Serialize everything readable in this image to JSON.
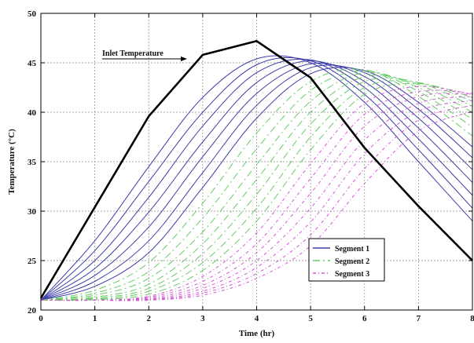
{
  "chart_data": {
    "type": "line",
    "title": "",
    "xlabel": "Time (hr)",
    "ylabel": "Temperature (°C)",
    "xlim": [
      0,
      8
    ],
    "ylim": [
      20,
      50
    ],
    "xticks": [
      "0",
      "1",
      "2",
      "3",
      "4",
      "5",
      "6",
      "7",
      "8"
    ],
    "yticks": [
      "20",
      "25",
      "30",
      "35",
      "40",
      "45",
      "50"
    ],
    "grid": true,
    "legend_position": "lower-right",
    "annotation": "Inlet Temperature",
    "inlet": {
      "x": [
        0,
        1,
        2,
        3,
        4,
        5,
        6,
        7,
        8
      ],
      "y": [
        21.2,
        30.4,
        39.6,
        45.8,
        47.2,
        43.5,
        36.4,
        30.5,
        25.0
      ]
    },
    "segments": [
      {
        "name": "Segment 1",
        "color": "#3d3daa",
        "dash": "",
        "curves": [
          {
            "x": [
              0,
              1,
              2,
              3,
              4,
              5,
              6,
              7,
              8
            ],
            "y": [
              21.0,
              27.0,
              34.5,
              41.5,
              45.4,
              45.0,
              41.0,
              35.0,
              29.0
            ]
          },
          {
            "x": [
              0,
              1,
              2,
              3,
              4,
              5,
              6,
              7,
              8
            ],
            "y": [
              21.0,
              26.0,
              33.0,
              40.0,
              44.8,
              45.2,
              41.8,
              36.2,
              30.3
            ]
          },
          {
            "x": [
              0,
              1,
              2,
              3,
              4,
              5,
              6,
              7,
              8
            ],
            "y": [
              21.0,
              25.0,
              31.4,
              38.6,
              44.0,
              45.3,
              42.5,
              37.3,
              31.6
            ]
          },
          {
            "x": [
              0,
              1,
              2,
              3,
              4,
              5,
              6,
              7,
              8
            ],
            "y": [
              21.0,
              24.2,
              29.9,
              37.0,
              43.0,
              45.2,
              43.1,
              38.4,
              32.9
            ]
          },
          {
            "x": [
              0,
              1,
              2,
              3,
              4,
              5,
              6,
              7,
              8
            ],
            "y": [
              21.0,
              23.5,
              28.4,
              35.5,
              41.9,
              44.9,
              43.6,
              39.4,
              34.2
            ]
          },
          {
            "x": [
              0,
              1,
              2,
              3,
              4,
              5,
              6,
              7,
              8
            ],
            "y": [
              21.0,
              22.9,
              27.0,
              33.9,
              40.7,
              44.5,
              44.0,
              40.3,
              35.4
            ]
          },
          {
            "x": [
              0,
              1,
              2,
              3,
              4,
              5,
              6,
              7,
              8
            ],
            "y": [
              21.0,
              22.4,
              25.8,
              32.4,
              39.4,
              43.9,
              44.2,
              41.0,
              36.5
            ]
          }
        ]
      },
      {
        "name": "Segment 2",
        "color": "#66cc66",
        "dash": "9,4,2,4",
        "curves": [
          {
            "x": [
              0,
              1,
              2,
              3,
              4,
              5,
              6,
              7,
              8
            ],
            "y": [
              21.0,
              22.0,
              24.8,
              30.8,
              37.9,
              43.1,
              44.3,
              41.6,
              37.6
            ]
          },
          {
            "x": [
              0,
              1,
              2,
              3,
              4,
              5,
              6,
              7,
              8
            ],
            "y": [
              21.0,
              21.7,
              23.9,
              29.3,
              36.3,
              42.2,
              44.2,
              42.1,
              38.5
            ]
          },
          {
            "x": [
              0,
              1,
              2,
              3,
              4,
              5,
              6,
              7,
              8
            ],
            "y": [
              21.0,
              21.5,
              23.2,
              27.9,
              34.7,
              41.1,
              44.0,
              42.5,
              39.3
            ]
          },
          {
            "x": [
              0,
              1,
              2,
              3,
              4,
              5,
              6,
              7,
              8
            ],
            "y": [
              21.0,
              21.3,
              22.6,
              26.7,
              33.2,
              40.0,
              43.6,
              42.8,
              40.0
            ]
          },
          {
            "x": [
              0,
              1,
              2,
              3,
              4,
              5,
              6,
              7,
              8
            ],
            "y": [
              21.0,
              21.2,
              22.2,
              25.7,
              31.7,
              38.8,
              43.1,
              43.0,
              40.6
            ]
          },
          {
            "x": [
              0,
              1,
              2,
              3,
              4,
              5,
              6,
              7,
              8
            ],
            "y": [
              21.0,
              21.1,
              21.9,
              24.8,
              30.3,
              37.5,
              42.5,
              43.0,
              41.1
            ]
          },
          {
            "x": [
              0,
              1,
              2,
              3,
              4,
              5,
              6,
              7,
              8
            ],
            "y": [
              21.0,
              21.05,
              21.6,
              24.0,
              29.0,
              36.2,
              41.8,
              42.9,
              41.5
            ]
          }
        ]
      },
      {
        "name": "Segment 3",
        "color": "#d655d6",
        "dash": "4,3,1,3",
        "curves": [
          {
            "x": [
              0,
              1,
              2,
              3,
              4,
              5,
              6,
              7,
              8
            ],
            "y": [
              21.0,
              21.0,
              21.4,
              23.4,
              27.8,
              34.8,
              40.9,
              42.6,
              41.8
            ]
          },
          {
            "x": [
              0,
              1,
              2,
              3,
              4,
              5,
              6,
              7,
              8
            ],
            "y": [
              21.0,
              21.0,
              21.3,
              22.9,
              26.7,
              33.3,
              39.8,
              42.1,
              41.9
            ]
          },
          {
            "x": [
              0,
              1,
              2,
              3,
              4,
              5,
              6,
              7,
              8
            ],
            "y": [
              21.0,
              21.0,
              21.2,
              22.5,
              25.8,
              31.8,
              38.6,
              41.6,
              41.8
            ]
          },
          {
            "x": [
              0,
              1,
              2,
              3,
              4,
              5,
              6,
              7,
              8
            ],
            "y": [
              21.0,
              21.0,
              21.1,
              22.2,
              25.0,
              30.3,
              37.2,
              40.9,
              41.6
            ]
          },
          {
            "x": [
              0,
              1,
              2,
              3,
              4,
              5,
              6,
              7,
              8
            ],
            "y": [
              21.0,
              21.0,
              21.05,
              21.9,
              24.3,
              28.9,
              35.8,
              40.1,
              41.2
            ]
          },
          {
            "x": [
              0,
              1,
              2,
              3,
              4,
              5,
              6,
              7,
              8
            ],
            "y": [
              21.0,
              21.0,
              21.0,
              21.7,
              23.7,
              27.6,
              34.3,
              39.2,
              40.7
            ]
          },
          {
            "x": [
              0,
              1,
              2,
              3,
              4,
              5,
              6,
              7,
              8
            ],
            "y": [
              21.0,
              21.0,
              21.0,
              21.5,
              23.2,
              26.5,
              32.8,
              38.1,
              40.1
            ]
          }
        ]
      }
    ]
  }
}
